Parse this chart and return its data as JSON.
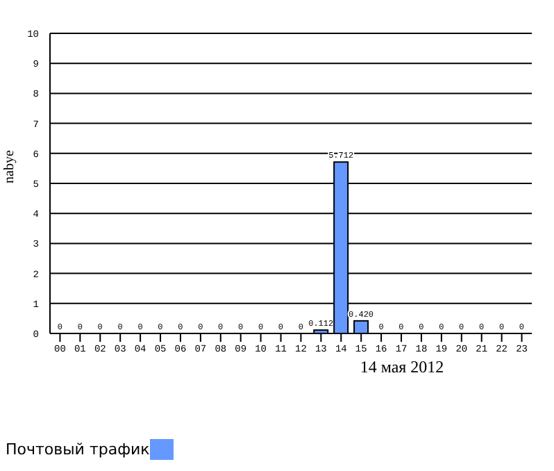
{
  "chart_data": {
    "type": "bar",
    "xlabel": "14 мая 2012",
    "ylabel": "nabye",
    "categories": [
      "00",
      "01",
      "02",
      "03",
      "04",
      "05",
      "06",
      "07",
      "08",
      "09",
      "10",
      "11",
      "12",
      "13",
      "14",
      "15",
      "16",
      "17",
      "18",
      "19",
      "20",
      "21",
      "22",
      "23"
    ],
    "series": [
      {
        "name": "Почтовый трафик",
        "color": "#6699ff",
        "values": [
          0,
          0,
          0,
          0,
          0,
          0,
          0,
          0,
          0,
          0,
          0,
          0,
          0,
          0.112,
          5.712,
          0.42,
          0,
          0,
          0,
          0,
          0,
          0,
          0,
          0
        ],
        "value_labels": [
          "0",
          "0",
          "0",
          "0",
          "0",
          "0",
          "0",
          "0",
          "0",
          "0",
          "0",
          "0",
          "0",
          "0.112",
          "5.712",
          "0.420",
          "0",
          "0",
          "0",
          "0",
          "0",
          "0",
          "0",
          "0"
        ]
      }
    ],
    "ylim": [
      0,
      10
    ],
    "yticks": [
      0,
      1,
      2,
      3,
      4,
      5,
      6,
      7,
      8,
      9,
      10
    ],
    "grid": "y",
    "legend": "bottom left"
  }
}
